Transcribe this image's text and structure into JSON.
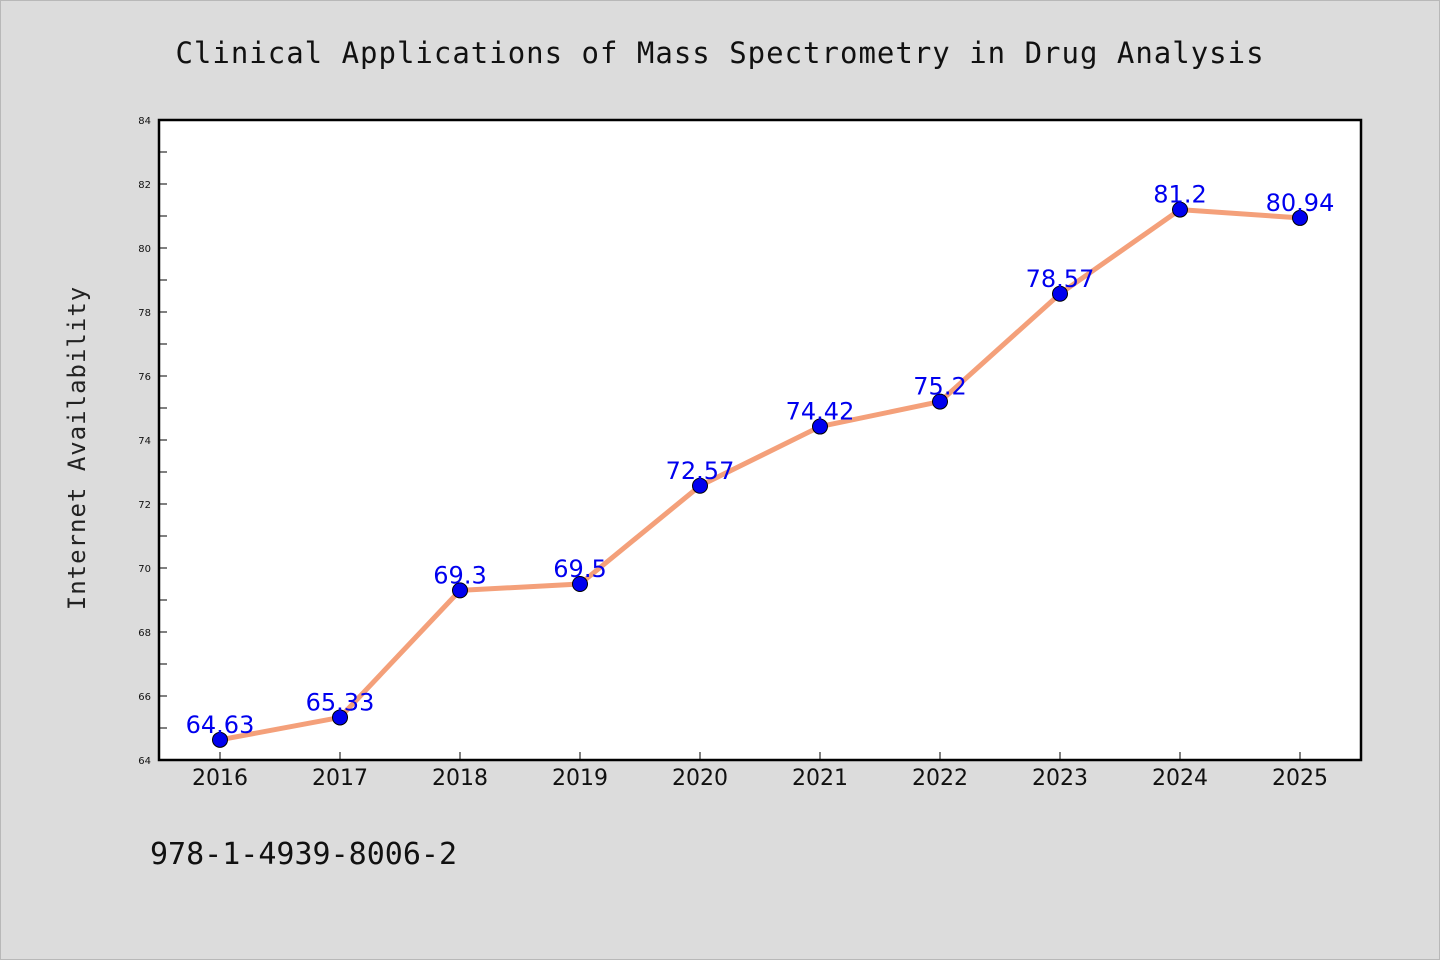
{
  "chart_data": {
    "type": "line",
    "title": "Clinical Applications of Mass Spectrometry in Drug Analysis",
    "xlabel": "",
    "ylabel": "Internet Availability",
    "categories": [
      "2016",
      "2017",
      "2018",
      "2019",
      "2020",
      "2021",
      "2022",
      "2023",
      "2024",
      "2025"
    ],
    "series": [
      {
        "values": [
          64.63,
          65.33,
          69.3,
          69.5,
          72.57,
          74.42,
          75.2,
          78.57,
          81.2,
          80.94
        ],
        "line_color": "#f4a07a",
        "marker_color": "#0000ee",
        "label_color": "#0000ee"
      }
    ],
    "data_labels": [
      "64.63",
      "65.33",
      "69.3",
      "69.5",
      "72.57",
      "74.42",
      "75.2",
      "78.57",
      "81.2",
      "80.94"
    ],
    "ylim": [
      64,
      84
    ],
    "yticks": [
      "64",
      "66",
      "68",
      "70",
      "72",
      "74",
      "76",
      "78",
      "80",
      "82",
      "84"
    ],
    "grid": false,
    "legend": "none"
  },
  "footer": {
    "isbn": "978-1-4939-8006-2"
  },
  "colors": {
    "background": "#dcdcdc",
    "plot_background": "#ffffff",
    "axis": "#000000"
  }
}
